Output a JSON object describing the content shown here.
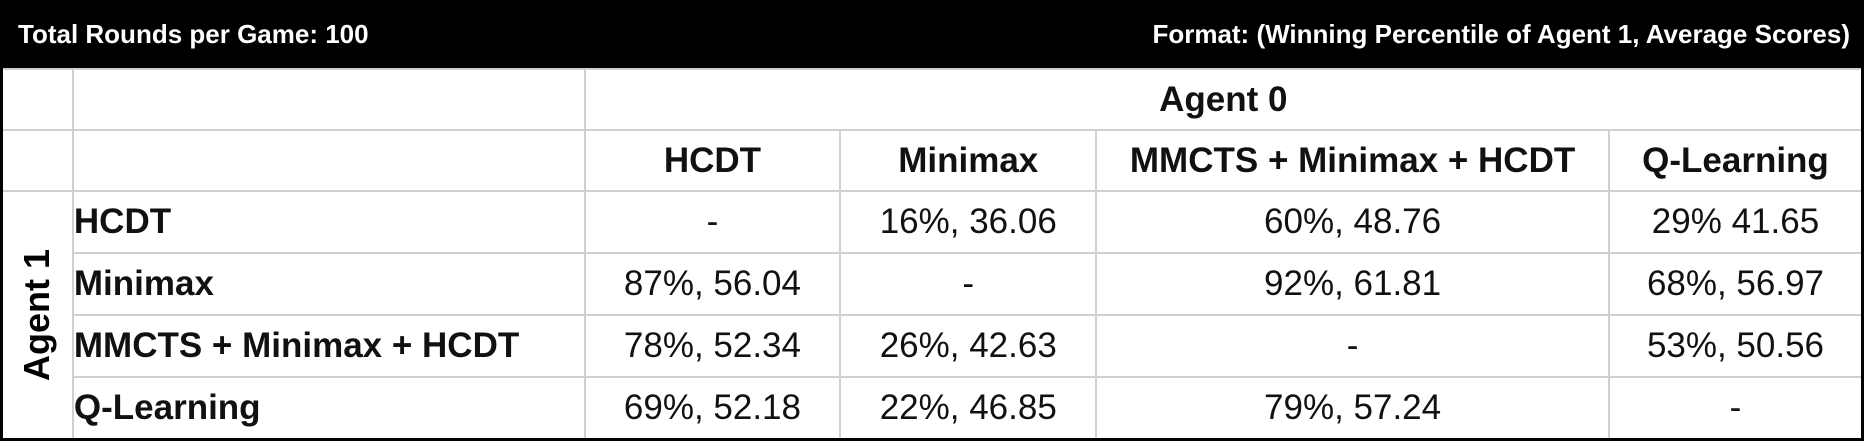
{
  "header": {
    "left_text": "Total Rounds per Game: 100",
    "right_text": "Format: (Winning Percentile of Agent 1, Average Scores)"
  },
  "table": {
    "column_group_label": "Agent 0",
    "row_group_label": "Agent 1",
    "column_headers": [
      "HCDT",
      "Minimax",
      "MMCTS + Minimax + HCDT",
      "Q-Learning"
    ],
    "rows": [
      {
        "label": "HCDT",
        "cells": [
          "-",
          "16%, 36.06",
          "60%, 48.76",
          "29% 41.65"
        ]
      },
      {
        "label": "Minimax",
        "cells": [
          "87%, 56.04",
          "-",
          "92%, 61.81",
          "68%, 56.97"
        ]
      },
      {
        "label": "MMCTS + Minimax + HCDT",
        "cells": [
          "78%, 52.34",
          "26%, 42.63",
          "-",
          "53%, 50.56"
        ]
      },
      {
        "label": "Q-Learning",
        "cells": [
          "69%, 52.18",
          "22%, 46.85",
          "79%, 57.24",
          "-"
        ]
      }
    ]
  },
  "colors": {
    "header_background": "#000000",
    "header_text": "#ffffff",
    "grid_line": "#d0d0d0",
    "strong_line": "#000000"
  }
}
